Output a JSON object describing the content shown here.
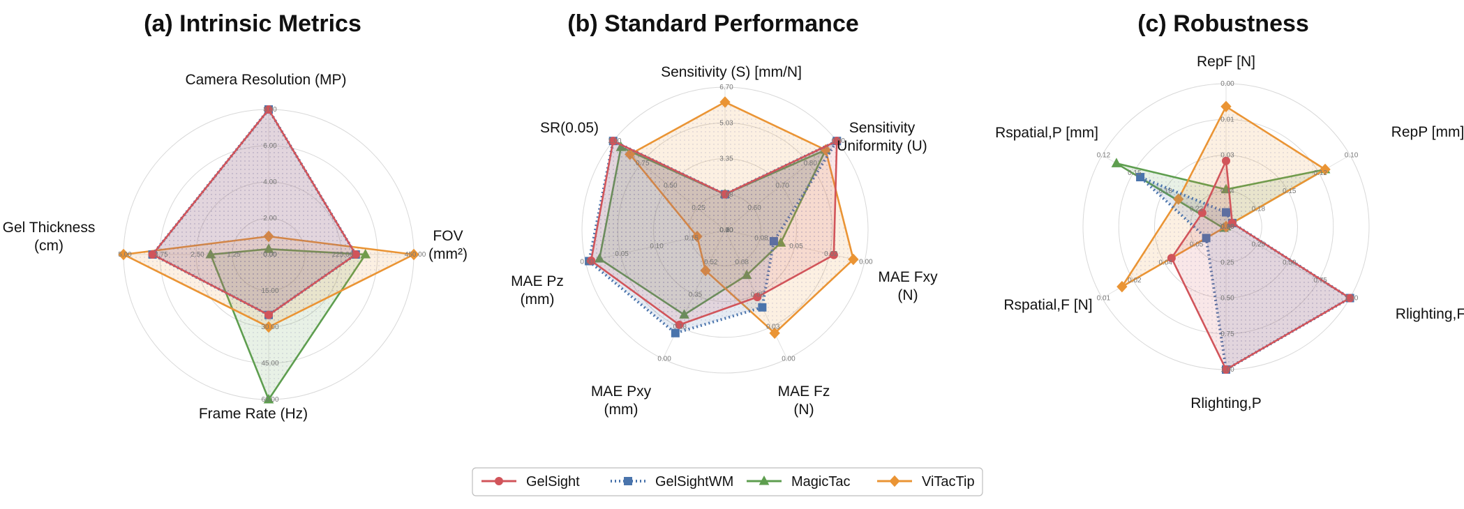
{
  "legend": {
    "entries": [
      {
        "name": "GelSight",
        "color": "#d1545a",
        "marker": "circle",
        "dash": "solid"
      },
      {
        "name": "GelSightWM",
        "color": "#4a74ac",
        "marker": "square",
        "dash": "dotted"
      },
      {
        "name": "MagicTac",
        "color": "#5e9e4f",
        "marker": "triangle",
        "dash": "solid"
      },
      {
        "name": "ViTacTip",
        "color": "#ea9434",
        "marker": "diamond",
        "dash": "solid"
      }
    ]
  },
  "chart_data": [
    {
      "type": "radar",
      "title": "(a) Intrinsic Metrics",
      "axes": [
        {
          "label": [
            "Camera Resolution (MP)"
          ],
          "ticks": [
            "0.00",
            "2.00",
            "4.00",
            "6.00",
            "8.00"
          ]
        },
        {
          "label": [
            "FOV",
            "(mm²)"
          ],
          "ticks": [
            "0.00",
            "",
            "225.00",
            "",
            "450.00"
          ]
        },
        {
          "label": [
            "Frame Rate (Hz)"
          ],
          "ticks": [
            "0.00",
            "15.00",
            "30.00",
            "45.00",
            "60.00"
          ]
        },
        {
          "label": [
            "Gel Thickness",
            "(cm)"
          ],
          "ticks": [
            "0.00",
            "1.25",
            "2.50",
            "3.75",
            "5.00"
          ]
        }
      ],
      "series": [
        {
          "name": "GelSight",
          "values": [
            8.0,
            270,
            25,
            4.0
          ]
        },
        {
          "name": "GelSightWM",
          "values": [
            8.0,
            270,
            25,
            4.0
          ]
        },
        {
          "name": "MagicTac",
          "values": [
            0.3,
            300,
            60,
            2.0
          ]
        },
        {
          "name": "ViTacTip",
          "values": [
            1.0,
            450,
            30,
            5.0
          ]
        }
      ]
    },
    {
      "type": "radar",
      "title": "(b) Standard Performance",
      "axes": [
        {
          "label": [
            "Sensitivity (S) [mm/N]"
          ],
          "ticks": [
            "0.00",
            "1.68",
            "3.35",
            "5.03",
            "6.70"
          ]
        },
        {
          "label": [
            "Sensitivity",
            "Uniformity (U)"
          ],
          "ticks": [
            "0.50",
            "0.60",
            "0.70",
            "0.80",
            "0.90"
          ]
        },
        {
          "label": [
            "MAE Fxy",
            "(N)"
          ],
          "ticks": [
            "0.10",
            "0.08",
            "0.05",
            "0.02",
            "0.00"
          ]
        },
        {
          "label": [
            "MAE Fz",
            "(N)"
          ],
          "ticks": [
            "0.10",
            "0.08",
            "0.05",
            "0.03",
            "0.00"
          ]
        },
        {
          "label": [
            "MAE Pxy",
            "(mm)"
          ],
          "ticks": [
            "0.70",
            "0.52",
            "0.35",
            "0.18",
            "0.00"
          ]
        },
        {
          "label": [
            "MAE Pz",
            "(mm)"
          ],
          "ticks": [
            "0.20",
            "0.15",
            "0.10",
            "0.05",
            "0.00"
          ]
        },
        {
          "label": [
            "SR(0.05)"
          ],
          "ticks": [
            "0.00",
            "0.25",
            "0.50",
            "0.75",
            "1.00"
          ]
        }
      ],
      "series": [
        {
          "name": "GelSight",
          "values": [
            1.68,
            0.93,
            0.022,
            0.048,
            0.185,
            0.008,
            1.0
          ]
        },
        {
          "name": "GelSightWM",
          "values": [
            1.68,
            0.9,
            0.065,
            0.04,
            0.14,
            0.005,
            1.0
          ]
        },
        {
          "name": "MagicTac",
          "values": [
            1.68,
            0.86,
            0.06,
            0.065,
            0.24,
            0.02,
            0.93
          ]
        },
        {
          "name": "ViTacTip",
          "values": [
            6.0,
            0.86,
            0.008,
            0.02,
            0.48,
            0.16,
            0.85
          ]
        }
      ]
    },
    {
      "type": "radar",
      "title": "(c) Robustness",
      "axes": [
        {
          "label": [
            "RepF [N]"
          ],
          "ticks": [
            "0.05",
            "0.04",
            "0.03",
            "0.01",
            "0.00"
          ]
        },
        {
          "label": [
            "RepP [mm]"
          ],
          "ticks": [
            "0.20",
            "0.18",
            "0.15",
            "0.12",
            "0.10"
          ]
        },
        {
          "label": [
            "Rlighting,F"
          ],
          "ticks": [
            "0.00",
            "0.25",
            "0.50",
            "0.75",
            "1.00"
          ]
        },
        {
          "label": [
            "Rlighting,P"
          ],
          "ticks": [
            "0.00",
            "0.25",
            "0.50",
            "0.75",
            "1.00"
          ]
        },
        {
          "label": [
            "Rspatial,F [N]"
          ],
          "ticks": [
            "0.06",
            "0.05",
            "0.04",
            "0.02",
            "0.01"
          ]
        },
        {
          "label": [
            "Rspatial,P [mm]"
          ],
          "ticks": [
            "0.25",
            "0.22",
            "0.18",
            "0.15",
            "0.12"
          ]
        }
      ],
      "series": [
        {
          "name": "GelSight",
          "values": [
            0.027,
            0.195,
            1.0,
            1.0,
            0.038,
            0.225
          ]
        },
        {
          "name": "GelSightWM",
          "values": [
            0.045,
            0.195,
            1.0,
            1.0,
            0.052,
            0.16
          ]
        },
        {
          "name": "MagicTac",
          "values": [
            0.037,
            0.12,
            0.0,
            0.0,
            0.059,
            0.135
          ]
        },
        {
          "name": "ViTacTip",
          "values": [
            0.008,
            0.12,
            0.0,
            0.0,
            0.018,
            0.2
          ]
        }
      ]
    }
  ]
}
